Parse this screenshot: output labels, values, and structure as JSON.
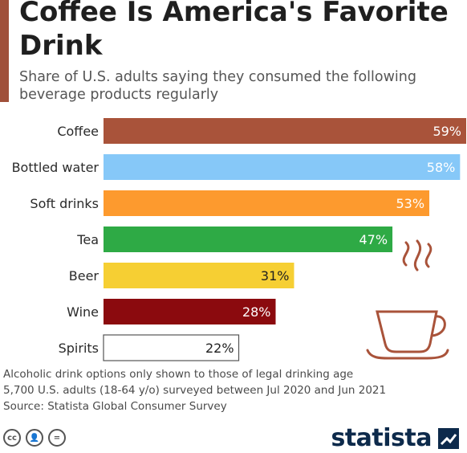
{
  "title": "Coffee Is America's Favorite Drink",
  "subtitle": "Share of U.S. adults saying they consumed the following beverage products regularly",
  "chart_data": {
    "type": "bar",
    "orientation": "horizontal",
    "categories": [
      "Coffee",
      "Bottled water",
      "Soft drinks",
      "Tea",
      "Beer",
      "Wine",
      "Spirits"
    ],
    "values": [
      59,
      58,
      53,
      47,
      31,
      28,
      22
    ],
    "value_labels": [
      "59%",
      "58%",
      "53%",
      "47%",
      "31%",
      "28%",
      "22%"
    ],
    "colors": [
      "#a9533a",
      "#86c8f8",
      "#fd9a2e",
      "#2eaa45",
      "#f6cf33",
      "#8b0a0e",
      "#ffffff"
    ],
    "label_colors": [
      "#ffffff",
      "#ffffff",
      "#ffffff",
      "#ffffff",
      "#1f1f1f",
      "#ffffff",
      "#1f1f1f"
    ],
    "xlim": [
      0,
      59
    ],
    "grid": false,
    "legend": "none"
  },
  "notes": {
    "line1": "Alcoholic drink options only shown to those of legal drinking age",
    "line2": "5,700 U.S. adults (18-64 y/o) surveyed between Jul 2020 and Jun 2021",
    "source": "Source: Statista Global Consumer Survey"
  },
  "license_icons": [
    "cc-icon",
    "attribution-icon",
    "no-derivatives-icon"
  ],
  "brand": {
    "name": "statista"
  },
  "decoration": {
    "icon": "coffee-cup-icon",
    "color": "#a9533a"
  }
}
